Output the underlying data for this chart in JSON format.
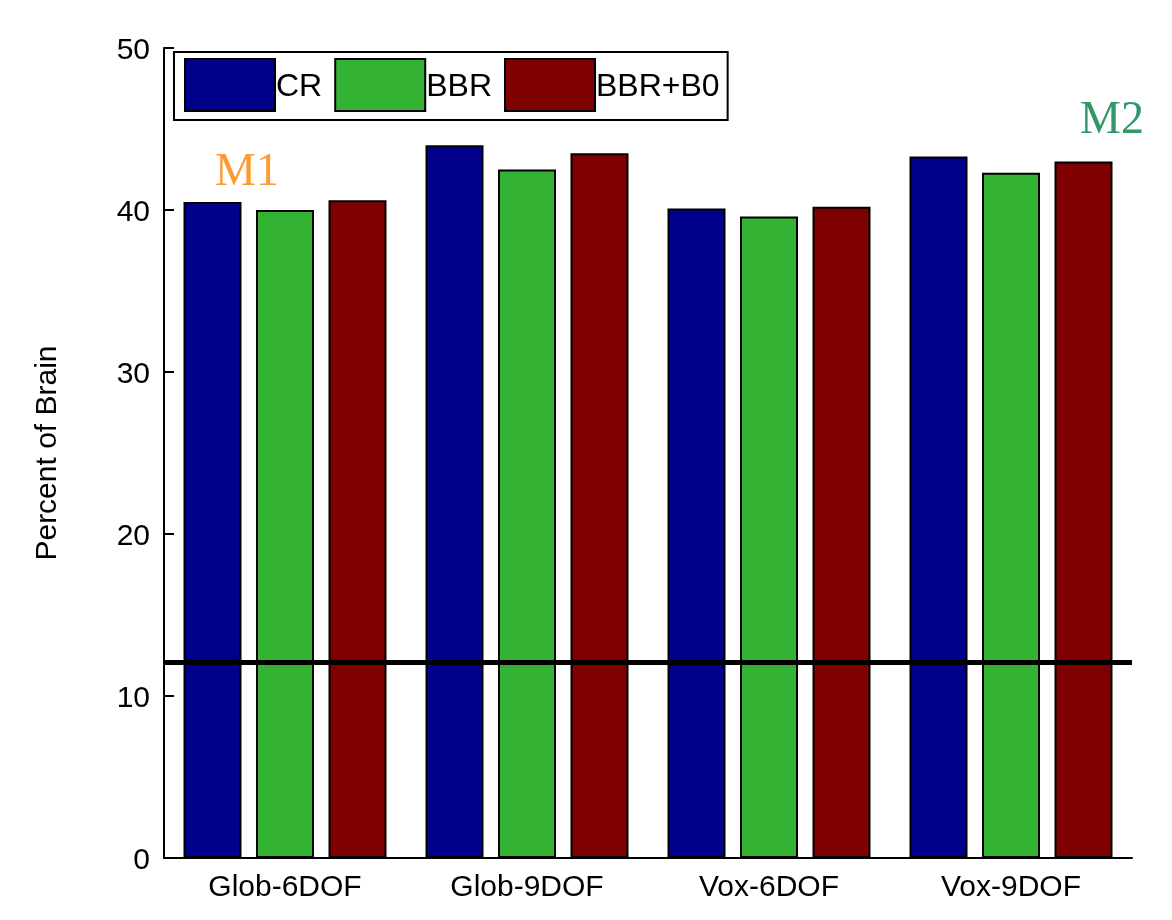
{
  "chart_data": {
    "type": "bar",
    "ylabel": "Percent of Brain",
    "categories": [
      "Glob-6DOF",
      "Glob-9DOF",
      "Vox-6DOF",
      "Vox-9DOF"
    ],
    "series": [
      {
        "name": "CR",
        "color": "#00008b",
        "values": [
          40.5,
          44.0,
          40.1,
          43.3
        ]
      },
      {
        "name": "BBR",
        "color": "#33b233",
        "values": [
          40.0,
          42.5,
          39.6,
          42.3
        ]
      },
      {
        "name": "BBR+B0",
        "color": "#7f0000",
        "values": [
          40.6,
          43.5,
          40.2,
          43.0
        ]
      }
    ],
    "ylim": [
      0,
      50
    ],
    "yticks": [
      0,
      10,
      20,
      30,
      40,
      50
    ],
    "ref_lines": [
      {
        "axis": "y",
        "value": 12.1,
        "color": "#000000"
      }
    ],
    "annotations": [
      "M1",
      "M2"
    ],
    "legend": "top left",
    "grid": false
  }
}
